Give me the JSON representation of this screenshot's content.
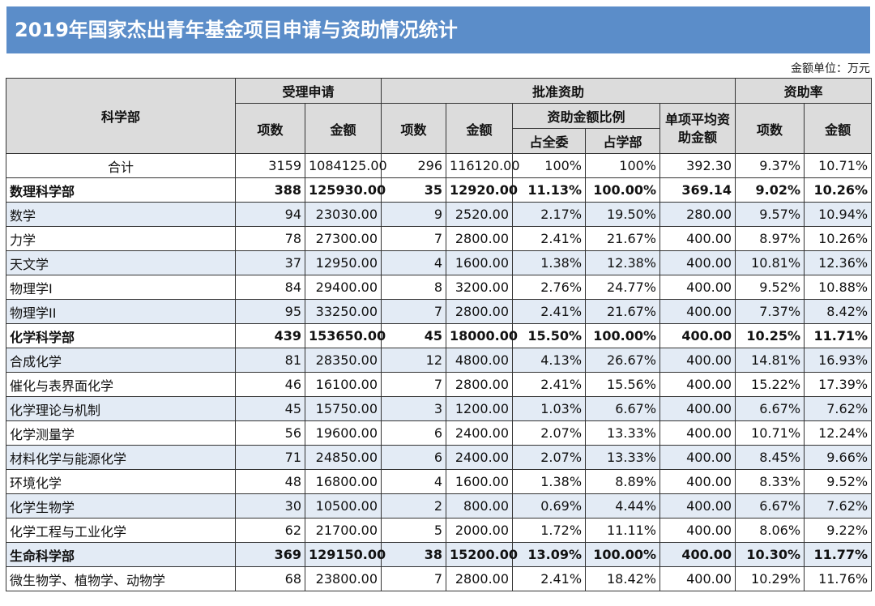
{
  "title": "2019年国家杰出青年基金项目申请与资助情况统计",
  "unit": "金额单位：万元",
  "headers": {
    "dept": "科学部",
    "applied": "受理申请",
    "approved": "批准资助",
    "rate": "资助率",
    "count": "项数",
    "amount": "金额",
    "ratio": "资助金额比例",
    "share_all": "占全委",
    "share_dept": "占学部",
    "avg": "单项平均资助金额"
  },
  "rows": [
    {
      "type": "total",
      "shade": false,
      "cells": [
        "合计",
        "3159",
        "1084125.00",
        "296",
        "116120.00",
        "100%",
        "100%",
        "392.30",
        "9.37%",
        "10.71%"
      ]
    },
    {
      "type": "dept",
      "shade": false,
      "cells": [
        "数理科学部",
        "388",
        "125930.00",
        "35",
        "12920.00",
        "11.13%",
        "100.00%",
        "369.14",
        "9.02%",
        "10.26%"
      ]
    },
    {
      "type": "sub",
      "shade": true,
      "cells": [
        "数学",
        "94",
        "23030.00",
        "9",
        "2520.00",
        "2.17%",
        "19.50%",
        "280.00",
        "9.57%",
        "10.94%"
      ]
    },
    {
      "type": "sub",
      "shade": false,
      "cells": [
        "力学",
        "78",
        "27300.00",
        "7",
        "2800.00",
        "2.41%",
        "21.67%",
        "400.00",
        "8.97%",
        "10.26%"
      ]
    },
    {
      "type": "sub",
      "shade": true,
      "cells": [
        "天文学",
        "37",
        "12950.00",
        "4",
        "1600.00",
        "1.38%",
        "12.38%",
        "400.00",
        "10.81%",
        "12.36%"
      ]
    },
    {
      "type": "sub",
      "shade": false,
      "cells": [
        "物理学I",
        "84",
        "29400.00",
        "8",
        "3200.00",
        "2.76%",
        "24.77%",
        "400.00",
        "9.52%",
        "10.88%"
      ]
    },
    {
      "type": "sub",
      "shade": true,
      "cells": [
        "物理学II",
        "95",
        "33250.00",
        "7",
        "2800.00",
        "2.41%",
        "21.67%",
        "400.00",
        "7.37%",
        "8.42%"
      ]
    },
    {
      "type": "dept",
      "shade": false,
      "cells": [
        "化学科学部",
        "439",
        "153650.00",
        "45",
        "18000.00",
        "15.50%",
        "100.00%",
        "400.00",
        "10.25%",
        "11.71%"
      ]
    },
    {
      "type": "sub",
      "shade": true,
      "cells": [
        "合成化学",
        "81",
        "28350.00",
        "12",
        "4800.00",
        "4.13%",
        "26.67%",
        "400.00",
        "14.81%",
        "16.93%"
      ]
    },
    {
      "type": "sub",
      "shade": false,
      "cells": [
        "催化与表界面化学",
        "46",
        "16100.00",
        "7",
        "2800.00",
        "2.41%",
        "15.56%",
        "400.00",
        "15.22%",
        "17.39%"
      ]
    },
    {
      "type": "sub",
      "shade": true,
      "cells": [
        "化学理论与机制",
        "45",
        "15750.00",
        "3",
        "1200.00",
        "1.03%",
        "6.67%",
        "400.00",
        "6.67%",
        "7.62%"
      ]
    },
    {
      "type": "sub",
      "shade": false,
      "cells": [
        "化学测量学",
        "56",
        "19600.00",
        "6",
        "2400.00",
        "2.07%",
        "13.33%",
        "400.00",
        "10.71%",
        "12.24%"
      ]
    },
    {
      "type": "sub",
      "shade": true,
      "cells": [
        "材料化学与能源化学",
        "71",
        "24850.00",
        "6",
        "2400.00",
        "2.07%",
        "13.33%",
        "400.00",
        "8.45%",
        "9.66%"
      ]
    },
    {
      "type": "sub",
      "shade": false,
      "cells": [
        "环境化学",
        "48",
        "16800.00",
        "4",
        "1600.00",
        "1.38%",
        "8.89%",
        "400.00",
        "8.33%",
        "9.52%"
      ]
    },
    {
      "type": "sub",
      "shade": true,
      "cells": [
        "化学生物学",
        "30",
        "10500.00",
        "2",
        "800.00",
        "0.69%",
        "4.44%",
        "400.00",
        "6.67%",
        "7.62%"
      ]
    },
    {
      "type": "sub",
      "shade": false,
      "cells": [
        "化学工程与工业化学",
        "62",
        "21700.00",
        "5",
        "2000.00",
        "1.72%",
        "11.11%",
        "400.00",
        "8.06%",
        "9.22%"
      ]
    },
    {
      "type": "dept",
      "shade": true,
      "cells": [
        "生命科学部",
        "369",
        "129150.00",
        "38",
        "15200.00",
        "13.09%",
        "100.00%",
        "400.00",
        "10.30%",
        "11.77%"
      ]
    },
    {
      "type": "sub",
      "shade": false,
      "cells": [
        "微生物学、植物学、动物学",
        "68",
        "23800.00",
        "7",
        "2800.00",
        "2.41%",
        "18.42%",
        "400.00",
        "10.29%",
        "11.76%"
      ]
    }
  ]
}
